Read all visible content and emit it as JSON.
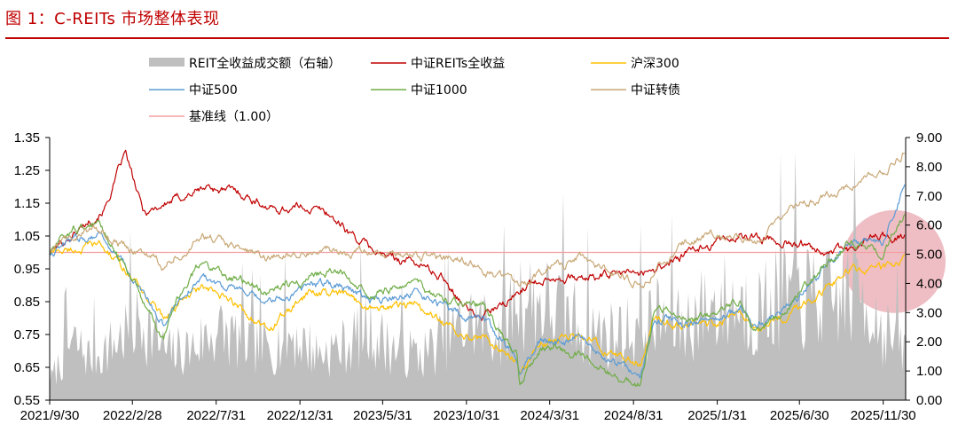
{
  "figure": {
    "title": "图 1：C-REITs 市场整体表现"
  },
  "chart_data": {
    "type": "line",
    "x_ticks": [
      "2021/9/30",
      "2022/2/28",
      "2022/7/31",
      "2022/12/31",
      "2023/5/31",
      "2023/10/31",
      "2024/3/31",
      "2024/8/31",
      "2025/1/31",
      "2025/6/30",
      "2025/11/30"
    ],
    "xlim": [
      "2021-09-30",
      "2026-01-10"
    ],
    "ylim_left": [
      0.55,
      1.35
    ],
    "y_ticks_left": [
      "1.35",
      "1.25",
      "1.15",
      "1.05",
      "0.95",
      "0.85",
      "0.75",
      "0.65",
      "0.55"
    ],
    "ylim_right": [
      0,
      9
    ],
    "y_ticks_right": [
      "9.00",
      "8.00",
      "7.00",
      "6.00",
      "5.00",
      "4.00",
      "3.00",
      "2.00",
      "1.00",
      "0.00"
    ],
    "legend": [
      {
        "label": "REIT全收益成交额（右轴）",
        "color": "#bfbfbf",
        "kind": "area"
      },
      {
        "label": "中证REITs全收益",
        "color": "#c00000",
        "kind": "line"
      },
      {
        "label": "沪深300",
        "color": "#ffc000",
        "kind": "line"
      },
      {
        "label": "中证500",
        "color": "#5b9bd5",
        "kind": "line"
      },
      {
        "label": "中证1000",
        "color": "#70ad47",
        "kind": "line"
      },
      {
        "label": "中证转债",
        "color": "#c9a877",
        "kind": "line"
      },
      {
        "label": "基准线（1.00）",
        "color": "#f4a0a0",
        "kind": "line"
      }
    ],
    "series": [
      {
        "name": "中证REITs全收益",
        "color": "#c00000",
        "x": [
          "2021-09-30",
          "2021-11-15",
          "2022-01-10",
          "2022-02-15",
          "2022-03-20",
          "2022-05-15",
          "2022-07-15",
          "2022-09-15",
          "2022-11-15",
          "2023-01-10",
          "2023-02-20",
          "2023-04-15",
          "2023-06-01",
          "2023-08-01",
          "2023-09-20",
          "2023-11-20",
          "2024-01-10",
          "2024-02-15",
          "2024-03-31",
          "2024-05-31",
          "2024-07-15",
          "2024-09-20",
          "2024-11-20",
          "2025-01-10",
          "2025-03-15",
          "2025-05-15",
          "2025-07-20",
          "2025-09-30",
          "2025-11-15",
          "2026-01-08"
        ],
        "y": [
          1.0,
          1.06,
          1.14,
          1.3,
          1.12,
          1.16,
          1.2,
          1.18,
          1.13,
          1.14,
          1.12,
          1.04,
          0.99,
          0.97,
          0.92,
          0.8,
          0.84,
          0.9,
          0.93,
          0.92,
          0.93,
          0.94,
          0.98,
          1.02,
          1.05,
          1.04,
          1.02,
          1.0,
          1.05,
          1.05
        ]
      },
      {
        "name": "沪深300",
        "color": "#ffc000",
        "x": [
          "2021-09-30",
          "2021-11-15",
          "2021-12-31",
          "2022-02-15",
          "2022-04-26",
          "2022-05-20",
          "2022-07-05",
          "2022-09-15",
          "2022-10-31",
          "2023-01-20",
          "2023-03-15",
          "2023-05-15",
          "2023-07-31",
          "2023-09-30",
          "2023-11-30",
          "2024-01-31",
          "2024-02-05",
          "2024-03-15",
          "2024-05-20",
          "2024-07-15",
          "2024-09-13",
          "2024-10-08",
          "2024-11-30",
          "2025-01-31",
          "2025-03-15",
          "2025-04-08",
          "2025-05-31",
          "2025-07-31",
          "2025-09-30",
          "2025-11-30",
          "2026-01-08"
        ],
        "y": [
          1.0,
          1.01,
          1.02,
          0.95,
          0.8,
          0.84,
          0.89,
          0.83,
          0.76,
          0.88,
          0.87,
          0.83,
          0.84,
          0.77,
          0.74,
          0.67,
          0.64,
          0.72,
          0.75,
          0.7,
          0.66,
          0.81,
          0.78,
          0.79,
          0.83,
          0.76,
          0.81,
          0.87,
          0.95,
          0.95,
          0.97
        ]
      },
      {
        "name": "中证500",
        "color": "#5b9bd5",
        "x": [
          "2021-09-30",
          "2021-11-15",
          "2021-12-31",
          "2022-02-15",
          "2022-04-26",
          "2022-05-20",
          "2022-07-05",
          "2022-09-15",
          "2022-10-31",
          "2023-01-20",
          "2023-03-15",
          "2023-05-15",
          "2023-07-31",
          "2023-09-30",
          "2023-11-30",
          "2024-01-31",
          "2024-02-05",
          "2024-03-15",
          "2024-05-20",
          "2024-07-15",
          "2024-09-13",
          "2024-10-08",
          "2024-11-30",
          "2025-01-31",
          "2025-03-15",
          "2025-04-08",
          "2025-05-31",
          "2025-07-31",
          "2025-09-30",
          "2025-11-30",
          "2026-01-08"
        ],
        "y": [
          1.0,
          1.04,
          1.06,
          0.95,
          0.78,
          0.85,
          0.93,
          0.88,
          0.84,
          0.9,
          0.91,
          0.85,
          0.88,
          0.82,
          0.8,
          0.68,
          0.63,
          0.73,
          0.73,
          0.67,
          0.62,
          0.8,
          0.79,
          0.79,
          0.84,
          0.77,
          0.82,
          0.92,
          1.04,
          1.03,
          1.2
        ]
      },
      {
        "name": "中证1000",
        "color": "#70ad47",
        "x": [
          "2021-09-30",
          "2021-11-15",
          "2021-12-31",
          "2022-02-15",
          "2022-04-26",
          "2022-05-20",
          "2022-07-05",
          "2022-09-15",
          "2022-10-31",
          "2023-01-20",
          "2023-03-15",
          "2023-05-15",
          "2023-07-31",
          "2023-09-30",
          "2023-11-30",
          "2024-01-31",
          "2024-02-05",
          "2024-03-15",
          "2024-05-20",
          "2024-07-15",
          "2024-09-13",
          "2024-10-08",
          "2024-11-30",
          "2025-01-31",
          "2025-03-15",
          "2025-04-08",
          "2025-05-31",
          "2025-07-31",
          "2025-09-30",
          "2025-11-30",
          "2026-01-08"
        ],
        "y": [
          1.0,
          1.07,
          1.09,
          0.96,
          0.73,
          0.86,
          0.97,
          0.91,
          0.88,
          0.93,
          0.94,
          0.88,
          0.9,
          0.84,
          0.84,
          0.68,
          0.58,
          0.71,
          0.69,
          0.63,
          0.6,
          0.82,
          0.81,
          0.81,
          0.86,
          0.76,
          0.82,
          0.93,
          1.04,
          1.0,
          1.12
        ]
      },
      {
        "name": "中证转债",
        "color": "#c9a877",
        "x": [
          "2021-09-30",
          "2021-11-15",
          "2021-12-31",
          "2022-02-15",
          "2022-04-26",
          "2022-07-05",
          "2022-09-15",
          "2022-10-31",
          "2023-01-20",
          "2023-05-15",
          "2023-07-31",
          "2023-10-31",
          "2024-01-31",
          "2024-02-05",
          "2024-03-31",
          "2024-05-20",
          "2024-07-15",
          "2024-09-13",
          "2024-11-30",
          "2025-01-31",
          "2025-04-08",
          "2025-06-30",
          "2025-09-30",
          "2025-11-30",
          "2026-01-08"
        ],
        "y": [
          1.0,
          1.05,
          1.07,
          1.02,
          0.96,
          1.05,
          1.01,
          0.98,
          1.01,
          1.0,
          0.99,
          0.97,
          0.9,
          0.88,
          0.96,
          0.98,
          0.95,
          0.9,
          1.02,
          1.06,
          1.03,
          1.14,
          1.2,
          1.24,
          1.31
        ]
      },
      {
        "name": "基准线（1.00）",
        "color": "#f4a0a0",
        "x": [
          "2021-09-30",
          "2026-01-10"
        ],
        "y": [
          1.0,
          1.0
        ]
      }
    ],
    "volume": {
      "name": "REIT全收益成交额（右轴）",
      "color": "#bfbfbf",
      "x": [
        "2021-09-30",
        "2021-11-10",
        "2021-12-15",
        "2022-01-20",
        "2022-02-20",
        "2022-03-20",
        "2022-05-01",
        "2022-06-15",
        "2022-08-01",
        "2022-09-15",
        "2022-11-01",
        "2022-12-15",
        "2023-02-01",
        "2023-03-20",
        "2023-05-01",
        "2023-06-20",
        "2023-08-10",
        "2023-09-30",
        "2023-11-15",
        "2024-01-01",
        "2024-02-01",
        "2024-03-10",
        "2024-04-20",
        "2024-06-01",
        "2024-07-15",
        "2024-09-01",
        "2024-10-15",
        "2024-12-01",
        "2025-01-15",
        "2025-03-01",
        "2025-04-15",
        "2025-06-01",
        "2025-07-15",
        "2025-09-01",
        "2025-10-15",
        "2025-11-30",
        "2026-01-08"
      ],
      "y": [
        0.8,
        2.5,
        1.8,
        2.3,
        3.0,
        3.4,
        2.0,
        2.2,
        3.0,
        2.5,
        2.2,
        2.8,
        2.0,
        2.3,
        3.0,
        2.2,
        1.9,
        2.8,
        3.4,
        2.8,
        4.5,
        4.2,
        3.8,
        3.2,
        2.8,
        3.0,
        3.5,
        3.2,
        4.0,
        4.2,
        3.8,
        4.6,
        4.4,
        4.2,
        5.0,
        3.0,
        2.2
      ]
    },
    "annotation": {
      "shape": "circle",
      "color": "#e8a8b0",
      "center": [
        "2025-12-20",
        4.75
      ]
    }
  }
}
